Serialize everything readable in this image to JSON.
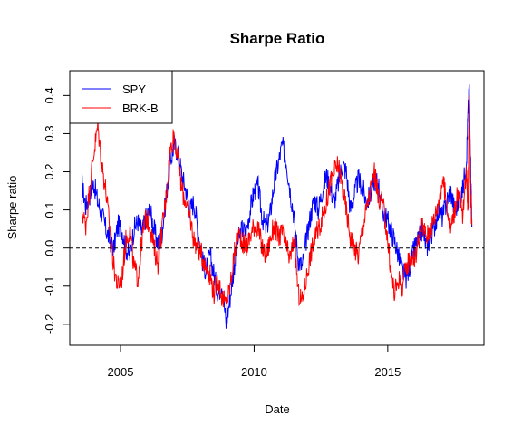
{
  "chart_data": {
    "type": "line",
    "title": "Sharpe Ratio",
    "xlabel": "Date",
    "ylabel": "Sharpe ratio",
    "xlim": [
      2003.1,
      2018.6
    ],
    "ylim": [
      -0.255,
      0.465
    ],
    "x_ticks": [
      {
        "value": 2005,
        "label": "2005"
      },
      {
        "value": 2010,
        "label": "2010"
      },
      {
        "value": 2015,
        "label": "2015"
      }
    ],
    "y_ticks": [
      {
        "value": -0.2,
        "label": "-0.2"
      },
      {
        "value": -0.1,
        "label": "-0.1"
      },
      {
        "value": 0.0,
        "label": "0.0"
      },
      {
        "value": 0.1,
        "label": "0.1"
      },
      {
        "value": 0.2,
        "label": "0.2"
      },
      {
        "value": 0.3,
        "label": "0.3"
      },
      {
        "value": 0.4,
        "label": "0.4"
      }
    ],
    "reference_line": {
      "y": 0.0,
      "style": "dashed",
      "color": "#000000"
    },
    "legend": {
      "position": "top-left"
    },
    "series": [
      {
        "name": "SPY",
        "color": "#0000FF",
        "x": [
          2003.55,
          2003.7,
          2003.85,
          2004.0,
          2004.15,
          2004.3,
          2004.45,
          2004.6,
          2004.75,
          2004.9,
          2005.05,
          2005.2,
          2005.35,
          2005.5,
          2005.65,
          2005.8,
          2005.95,
          2006.1,
          2006.25,
          2006.4,
          2006.55,
          2006.7,
          2006.85,
          2007.0,
          2007.15,
          2007.3,
          2007.45,
          2007.6,
          2007.75,
          2007.9,
          2008.05,
          2008.2,
          2008.35,
          2008.5,
          2008.65,
          2008.8,
          2008.95,
          2009.1,
          2009.25,
          2009.4,
          2009.55,
          2009.7,
          2009.85,
          2010.0,
          2010.15,
          2010.3,
          2010.45,
          2010.6,
          2010.75,
          2010.9,
          2011.05,
          2011.2,
          2011.35,
          2011.5,
          2011.65,
          2011.8,
          2011.95,
          2012.1,
          2012.25,
          2012.4,
          2012.55,
          2012.7,
          2012.85,
          2013.0,
          2013.15,
          2013.3,
          2013.45,
          2013.6,
          2013.75,
          2013.9,
          2014.05,
          2014.2,
          2014.35,
          2014.5,
          2014.65,
          2014.8,
          2014.95,
          2015.1,
          2015.25,
          2015.4,
          2015.55,
          2015.7,
          2015.85,
          2016.0,
          2016.15,
          2016.3,
          2016.45,
          2016.6,
          2016.75,
          2016.9,
          2017.05,
          2017.2,
          2017.35,
          2017.5,
          2017.65,
          2017.8,
          2017.95,
          2018.0,
          2018.05,
          2018.1,
          2018.15
        ],
        "y": [
          0.17,
          0.11,
          0.14,
          0.17,
          0.12,
          0.09,
          0.05,
          0.02,
          0.0,
          0.06,
          0.05,
          0.0,
          -0.02,
          0.05,
          0.07,
          0.04,
          0.08,
          0.1,
          0.05,
          0.01,
          0.04,
          0.13,
          0.22,
          0.27,
          0.25,
          0.19,
          0.15,
          0.1,
          0.12,
          0.05,
          -0.03,
          -0.06,
          -0.02,
          -0.07,
          -0.12,
          -0.09,
          -0.2,
          -0.13,
          -0.05,
          0.02,
          0.05,
          0.04,
          0.1,
          0.15,
          0.16,
          0.08,
          0.05,
          0.09,
          0.17,
          0.22,
          0.27,
          0.23,
          0.15,
          0.08,
          -0.03,
          -0.05,
          0.02,
          0.08,
          0.13,
          0.1,
          0.15,
          0.19,
          0.16,
          0.12,
          0.17,
          0.22,
          0.2,
          0.1,
          0.14,
          0.18,
          0.16,
          0.12,
          0.14,
          0.18,
          0.17,
          0.1,
          0.08,
          0.05,
          0.02,
          -0.02,
          -0.06,
          -0.08,
          -0.04,
          0.0,
          0.02,
          0.05,
          0.0,
          0.03,
          0.06,
          0.1,
          0.08,
          0.12,
          0.15,
          0.1,
          0.12,
          0.15,
          0.24,
          0.35,
          0.42,
          0.22,
          0.06
        ]
      },
      {
        "name": "BRK-B",
        "color": "#FF0000",
        "x": [
          2003.55,
          2003.7,
          2003.85,
          2004.0,
          2004.15,
          2004.3,
          2004.45,
          2004.6,
          2004.75,
          2004.9,
          2005.05,
          2005.2,
          2005.35,
          2005.5,
          2005.65,
          2005.8,
          2005.95,
          2006.1,
          2006.25,
          2006.4,
          2006.55,
          2006.7,
          2006.85,
          2007.0,
          2007.15,
          2007.3,
          2007.45,
          2007.6,
          2007.75,
          2007.9,
          2008.05,
          2008.2,
          2008.35,
          2008.5,
          2008.65,
          2008.8,
          2008.95,
          2009.1,
          2009.25,
          2009.4,
          2009.55,
          2009.7,
          2009.85,
          2010.0,
          2010.15,
          2010.3,
          2010.45,
          2010.6,
          2010.75,
          2010.9,
          2011.05,
          2011.2,
          2011.35,
          2011.5,
          2011.65,
          2011.8,
          2011.95,
          2012.1,
          2012.25,
          2012.4,
          2012.55,
          2012.7,
          2012.85,
          2013.0,
          2013.15,
          2013.3,
          2013.45,
          2013.6,
          2013.75,
          2013.9,
          2014.05,
          2014.2,
          2014.35,
          2014.5,
          2014.65,
          2014.8,
          2014.95,
          2015.1,
          2015.25,
          2015.4,
          2015.55,
          2015.7,
          2015.85,
          2016.0,
          2016.15,
          2016.3,
          2016.45,
          2016.6,
          2016.75,
          2016.9,
          2017.05,
          2017.2,
          2017.35,
          2017.5,
          2017.65,
          2017.8,
          2017.95,
          2018.0,
          2018.05,
          2018.1,
          2018.15
        ],
        "y": [
          0.1,
          0.06,
          0.16,
          0.25,
          0.32,
          0.22,
          0.15,
          0.05,
          -0.05,
          -0.1,
          -0.08,
          0.02,
          0.05,
          -0.05,
          -0.08,
          0.02,
          0.08,
          0.06,
          0.0,
          -0.04,
          0.05,
          0.13,
          0.25,
          0.3,
          0.23,
          0.15,
          0.12,
          0.08,
          0.02,
          0.0,
          -0.02,
          -0.05,
          -0.07,
          -0.12,
          -0.08,
          -0.13,
          -0.15,
          -0.1,
          -0.02,
          0.04,
          0.02,
          0.0,
          0.03,
          0.06,
          0.05,
          0.0,
          -0.02,
          0.02,
          0.06,
          0.03,
          0.04,
          0.0,
          -0.03,
          0.03,
          -0.12,
          -0.14,
          -0.08,
          -0.02,
          0.02,
          0.05,
          0.08,
          0.12,
          0.17,
          0.2,
          0.22,
          0.16,
          0.1,
          0.03,
          0.0,
          -0.02,
          0.05,
          0.1,
          0.15,
          0.2,
          0.13,
          0.12,
          0.05,
          -0.05,
          -0.12,
          -0.08,
          -0.1,
          -0.05,
          -0.02,
          -0.03,
          0.02,
          0.06,
          0.03,
          0.05,
          0.08,
          0.12,
          0.18,
          0.12,
          0.05,
          0.1,
          0.15,
          0.08,
          0.2,
          0.1,
          0.4,
          0.14,
          0.06
        ]
      }
    ]
  }
}
